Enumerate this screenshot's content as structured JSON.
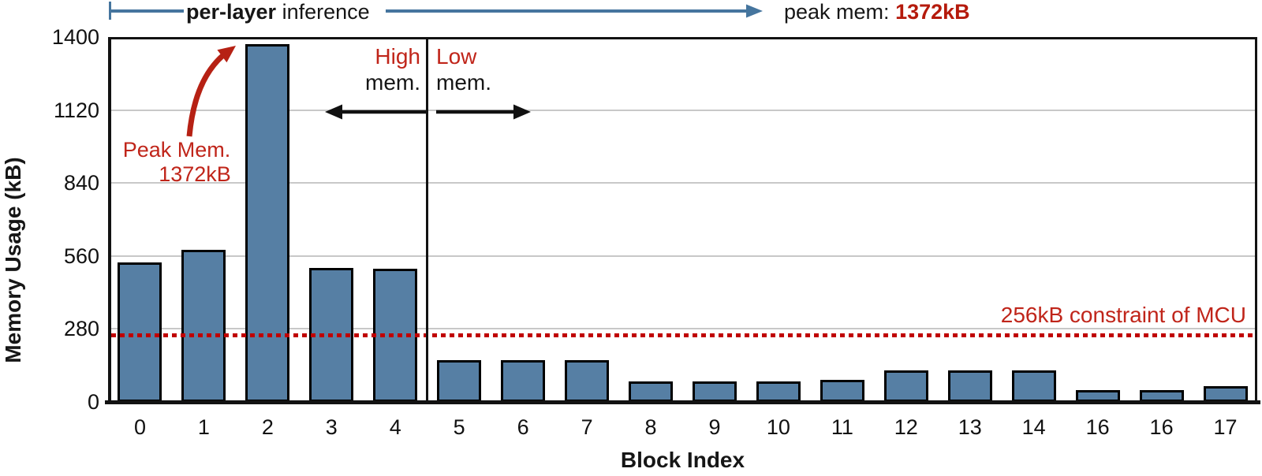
{
  "chart_data": {
    "type": "bar",
    "title": "",
    "xlabel": "Block Index",
    "ylabel": "Memory Usage (kB)",
    "categories": [
      "0",
      "1",
      "2",
      "3",
      "4",
      "5",
      "6",
      "7",
      "8",
      "9",
      "10",
      "11",
      "12",
      "13",
      "14",
      "16",
      "16",
      "17"
    ],
    "values": [
      535,
      585,
      1372,
      515,
      510,
      160,
      160,
      160,
      80,
      80,
      80,
      85,
      120,
      120,
      120,
      45,
      45,
      60
    ],
    "ylim": [
      0,
      1400
    ],
    "yticks": [
      0,
      280,
      560,
      840,
      1120,
      1400
    ],
    "grid": "horizontal",
    "legend": "none",
    "divider_after_index": 4,
    "constraint_line": {
      "value": 256,
      "label": "256kB constraint of MCU",
      "style": "dotted"
    },
    "peak_bar_index": 2,
    "peak_value_kb": 1372
  },
  "annotations": {
    "top_arrow": {
      "bold": "per-layer",
      "rest": " inference"
    },
    "top_right": {
      "prefix": "peak mem: ",
      "value": "1372kB"
    },
    "peak_callout": {
      "line1": "Peak Mem.",
      "line2": "1372kB"
    },
    "high_region": {
      "line1": "High",
      "line2": "mem."
    },
    "low_region": {
      "line1": "Low",
      "line2": "mem."
    }
  },
  "colors": {
    "bar_fill": "#567fa4",
    "bar_border": "#000000",
    "axis": "#121212",
    "gridline": "#c8c8c8",
    "annotation_red": "#c0251a",
    "peak_value_red": "#b51a0c",
    "constraint_red": "#c00000",
    "arrow_blue": "#45759e",
    "text_black": "#161616"
  }
}
